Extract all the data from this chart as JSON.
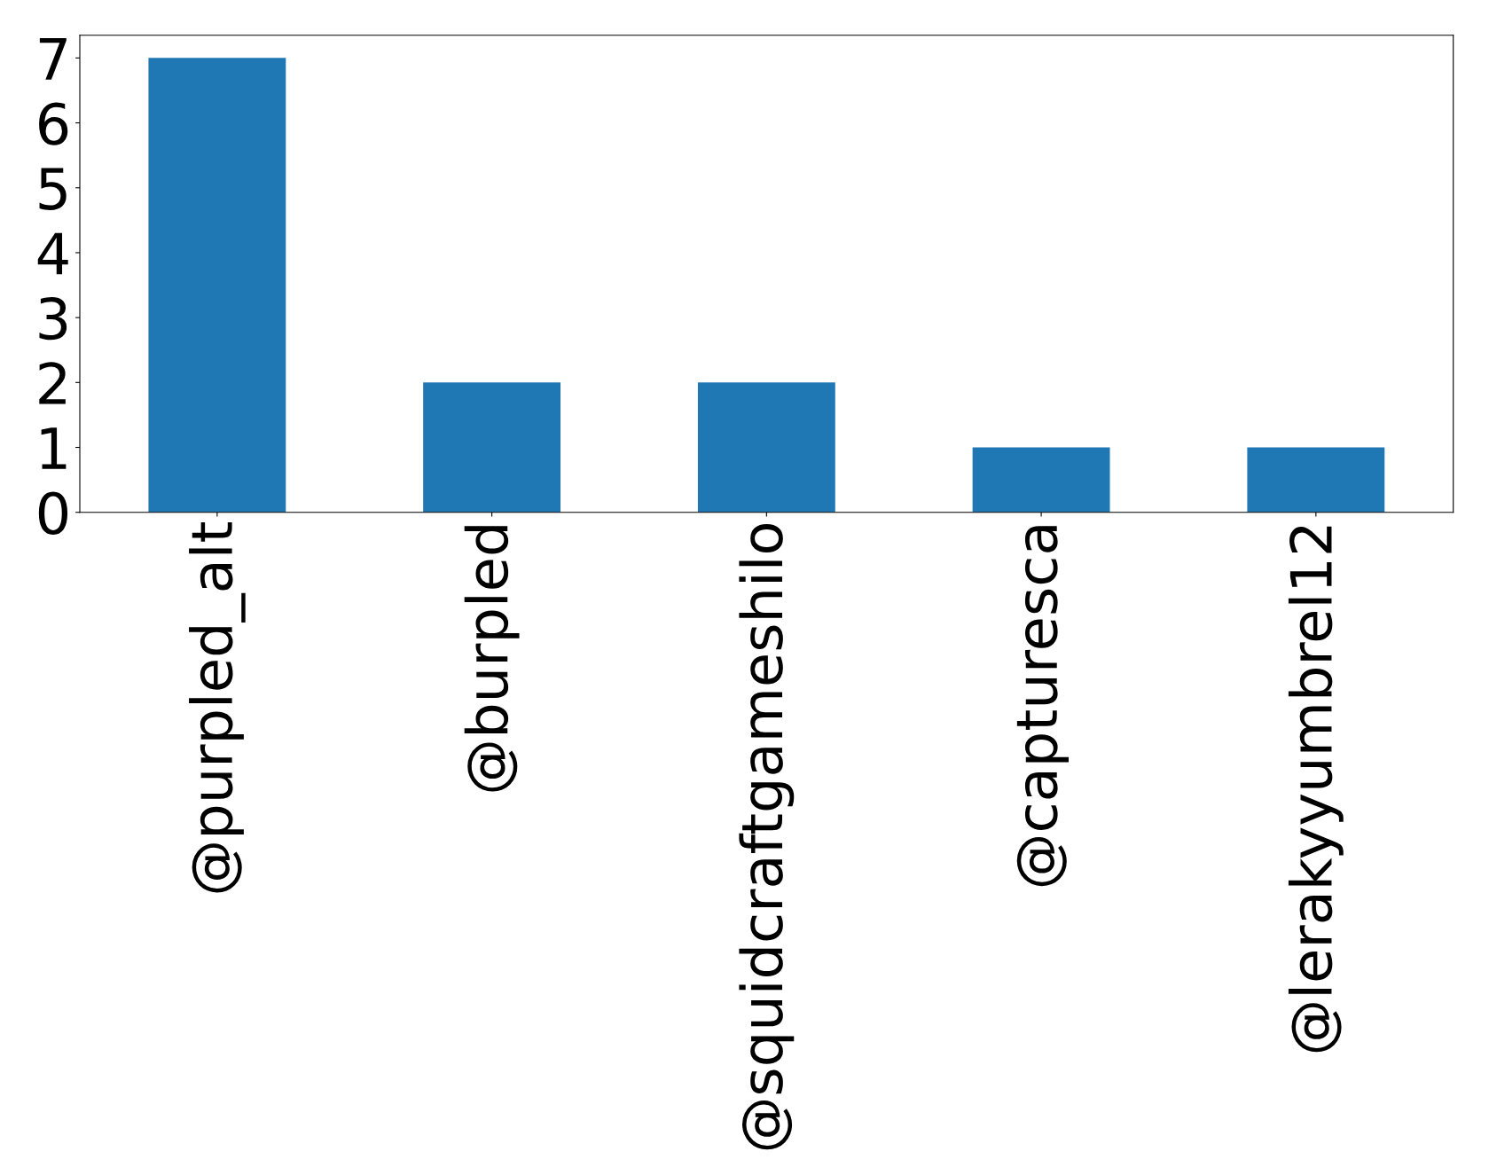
{
  "chart_data": {
    "type": "bar",
    "categories": [
      "@purpled_alt",
      "@burpled",
      "@squidcraftgameshilo",
      "@capturesca",
      "@lerakyyumbrel12"
    ],
    "values": [
      7,
      2,
      2,
      1,
      1
    ],
    "color": "#1f77b4",
    "ylim": [
      0,
      7.35
    ],
    "yticks": [
      0,
      1,
      2,
      3,
      4,
      5,
      6,
      7
    ],
    "grid": false,
    "legend": false
  }
}
